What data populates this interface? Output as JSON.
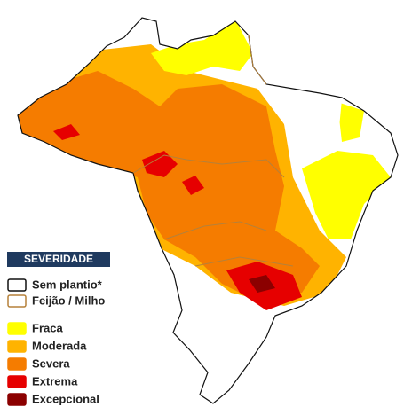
{
  "legend": {
    "title": "SEVERIDADE",
    "items": [
      {
        "label": "Sem plantio*",
        "fill": "#ffffff",
        "border": "#111111"
      },
      {
        "label": "Feijão / Milho",
        "fill": "#ffffff",
        "border": "#b5813a"
      },
      {
        "label": "Fraca",
        "fill": "#ffff00",
        "border": "#ffff00"
      },
      {
        "label": "Moderada",
        "fill": "#ffb300",
        "border": "#ffb300"
      },
      {
        "label": "Severa",
        "fill": "#f57c00",
        "border": "#f57c00"
      },
      {
        "label": "Extrema",
        "fill": "#e60000",
        "border": "#e60000"
      },
      {
        "label": "Excepcional",
        "fill": "#8b0000",
        "border": "#8b0000"
      }
    ]
  }
}
